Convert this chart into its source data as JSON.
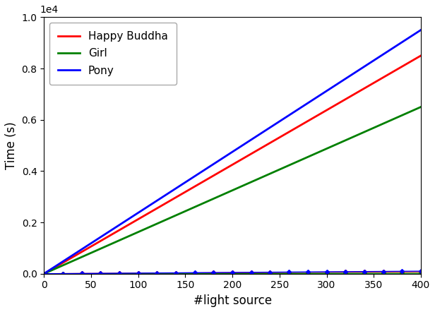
{
  "xlabel": "#light source",
  "ylabel": "Time (s)",
  "xlim": [
    0,
    400
  ],
  "ylim": [
    0,
    10000
  ],
  "series_steep": [
    {
      "label": "Happy Buddha",
      "color": "#ff0000",
      "slope": 21.25,
      "linewidth": 2.0
    },
    {
      "label": "Girl",
      "color": "#008000",
      "slope": 16.25,
      "linewidth": 2.0
    },
    {
      "label": "Pony",
      "color": "#0000ff",
      "slope": 23.75,
      "linewidth": 2.0
    }
  ],
  "series_flat": [
    {
      "color": "#ff0000",
      "slope": 0.2,
      "marker": "D",
      "markersize": 3
    },
    {
      "color": "#008000",
      "slope": 0.05,
      "marker": "D",
      "markersize": 3
    },
    {
      "color": "#0000ff",
      "slope": 0.25,
      "marker": "D",
      "markersize": 3
    }
  ],
  "legend_labels": [
    "Happy Buddha",
    "Girl",
    "Pony"
  ],
  "legend_colors": [
    "#ff0000",
    "#008000",
    "#0000ff"
  ],
  "xticks": [
    0,
    50,
    100,
    150,
    200,
    250,
    300,
    350,
    400
  ],
  "yticks": [
    0,
    2000,
    4000,
    6000,
    8000,
    10000
  ],
  "figsize": [
    6.16,
    4.42
  ],
  "dpi": 100
}
